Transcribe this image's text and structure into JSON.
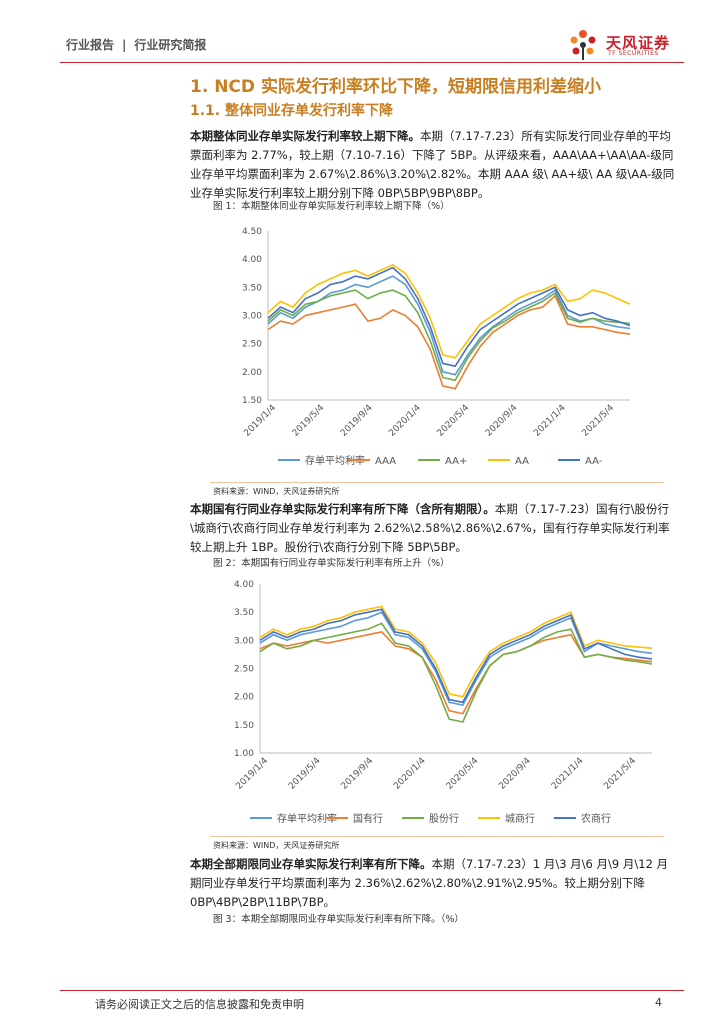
{
  "header": {
    "left_a": "行业报告",
    "sep": "|",
    "left_b": "行业研究简报",
    "logo_cn": "天风证券",
    "logo_en": "TF SECURITIES"
  },
  "section": {
    "h1": "1. NCD 实际发行利率环比下降，短期限信用利差缩小",
    "h2": "1.1. 整体同业存单发行利率下降"
  },
  "para1": {
    "bold": "本期整体同业存单实际发行利率较上期下降。",
    "text": "本期（7.17-7.23）所有实际发行同业存单的平均票面利率为 2.77%，较上期（7.10-7.16）下降了 5BP。从评级来看，AAA\\AA+\\AA\\AA-级同业存单平均票面利率为 2.67%\\2.86%\\3.20%\\2.82%。本期 AAA 级\\ AA+级\\ AA 级\\AA-级同业存单实际发行利率较上期分别下降 0BP\\5BP\\9BP\\8BP。"
  },
  "fig1": {
    "caption": "图 1：本期整体同业存单实际发行利率较上期下降（%）",
    "source": "资料来源：WIND，天风证券研究所"
  },
  "para2": {
    "bold": "本期国有行同业存单实际发行利率有所下降（含所有期限）。",
    "text": "本期（7.17-7.23）国有行\\股份行\\城商行\\农商行同业存单发行利率为 2.62%\\2.58%\\2.86%\\2.67%，国有行存单实际发行利率较上期上升 1BP。股份行\\农商行分别下降 5BP\\5BP。"
  },
  "fig2": {
    "caption": "图 2：本期国有行同业存单实际发行利率有所上升（%）",
    "source": "资料来源：WIND，天风证券研究所"
  },
  "para3": {
    "bold": "本期全部期限同业存单实际发行利率有所下降。",
    "text": "本期（7.17-7.23）1 月\\3 月\\6 月\\9 月\\12 月期同业存单发行平均票面利率为 2.36%\\2.62%\\2.80%\\2.91%\\2.95%。较上期分别下降 0BP\\4BP\\2BP\\11BP\\7BP。"
  },
  "fig3": {
    "caption": "图 3：本期全部期限同业存单实际发行利率有所下降。（%）"
  },
  "footer": {
    "disclaimer": "请务必阅读正文之后的信息披露和免责申明",
    "page": "4"
  },
  "chart_data": [
    {
      "type": "line",
      "ylim": [
        1.5,
        4.5
      ],
      "yticks": [
        "4.50",
        "4.00",
        "3.50",
        "3.00",
        "2.50",
        "2.00",
        "1.50"
      ],
      "x_tick_labels": [
        "2019/1/4",
        "2019/5/4",
        "2019/9/4",
        "2020/1/4",
        "2020/5/4",
        "2020/9/4",
        "2021/1/4",
        "2021/5/4"
      ],
      "n_points": 30,
      "legend_position": "bottom",
      "series": [
        {
          "name": "存单平均利率",
          "color": "#5b9bd5",
          "values": [
            2.85,
            3.05,
            2.95,
            3.15,
            3.25,
            3.4,
            3.45,
            3.55,
            3.5,
            3.6,
            3.7,
            3.55,
            3.2,
            2.7,
            2.0,
            1.95,
            2.3,
            2.6,
            2.8,
            2.95,
            3.1,
            3.2,
            3.3,
            3.45,
            3.0,
            2.9,
            2.95,
            2.85,
            2.8,
            2.77
          ]
        },
        {
          "name": "AAA",
          "color": "#ed7d31",
          "values": [
            2.75,
            2.9,
            2.85,
            3.0,
            3.05,
            3.1,
            3.15,
            3.2,
            2.9,
            2.95,
            3.1,
            3.0,
            2.8,
            2.4,
            1.75,
            1.7,
            2.1,
            2.45,
            2.7,
            2.85,
            3.0,
            3.1,
            3.15,
            3.35,
            2.85,
            2.8,
            2.8,
            2.75,
            2.7,
            2.67
          ]
        },
        {
          "name": "AA+",
          "color": "#70ad47",
          "values": [
            2.9,
            3.1,
            3.0,
            3.2,
            3.25,
            3.35,
            3.4,
            3.45,
            3.3,
            3.4,
            3.45,
            3.35,
            3.05,
            2.55,
            1.9,
            1.85,
            2.25,
            2.55,
            2.78,
            2.9,
            3.05,
            3.15,
            3.25,
            3.4,
            2.95,
            2.88,
            2.95,
            2.9,
            2.88,
            2.86
          ]
        },
        {
          "name": "AA",
          "color": "#ffc000",
          "values": [
            3.05,
            3.25,
            3.15,
            3.4,
            3.55,
            3.65,
            3.75,
            3.8,
            3.7,
            3.8,
            3.9,
            3.75,
            3.4,
            2.95,
            2.3,
            2.25,
            2.55,
            2.85,
            3.0,
            3.15,
            3.3,
            3.4,
            3.45,
            3.55,
            3.25,
            3.3,
            3.45,
            3.4,
            3.3,
            3.2
          ]
        },
        {
          "name": "AA-",
          "color": "#4472c4",
          "values": [
            2.95,
            3.15,
            3.05,
            3.3,
            3.4,
            3.55,
            3.6,
            3.7,
            3.65,
            3.75,
            3.85,
            3.65,
            3.3,
            2.8,
            2.15,
            2.1,
            2.45,
            2.75,
            2.9,
            3.05,
            3.2,
            3.3,
            3.4,
            3.5,
            3.1,
            3.0,
            3.05,
            2.95,
            2.9,
            2.82
          ]
        }
      ]
    },
    {
      "type": "line",
      "ylim": [
        1.0,
        4.0
      ],
      "yticks": [
        "4.00",
        "3.50",
        "3.00",
        "2.50",
        "2.00",
        "1.50",
        "1.00"
      ],
      "x_tick_labels": [
        "2019/1/4",
        "2019/5/4",
        "2019/9/4",
        "2020/1/4",
        "2020/5/4",
        "2020/9/4",
        "2021/1/4",
        "2021/5/4"
      ],
      "n_points": 30,
      "legend_position": "bottom",
      "series": [
        {
          "name": "存单平均利率",
          "color": "#5b9bd5",
          "values": [
            2.95,
            3.1,
            3.0,
            3.1,
            3.15,
            3.2,
            3.25,
            3.35,
            3.4,
            3.5,
            3.1,
            3.05,
            2.85,
            2.45,
            1.9,
            1.85,
            2.3,
            2.7,
            2.85,
            2.95,
            3.05,
            3.2,
            3.3,
            3.4,
            2.8,
            2.95,
            2.9,
            2.85,
            2.8,
            2.77
          ]
        },
        {
          "name": "国有行",
          "color": "#ed7d31",
          "values": [
            2.85,
            2.95,
            2.9,
            2.95,
            3.0,
            2.95,
            3.0,
            3.05,
            3.1,
            3.15,
            2.9,
            2.85,
            2.7,
            2.3,
            1.75,
            1.7,
            2.15,
            2.55,
            2.75,
            2.8,
            2.9,
            3.0,
            3.05,
            3.1,
            2.7,
            2.75,
            2.7,
            2.68,
            2.65,
            2.62
          ]
        },
        {
          "name": "股份行",
          "color": "#70ad47",
          "values": [
            2.8,
            2.95,
            2.85,
            2.9,
            3.0,
            3.05,
            3.1,
            3.15,
            3.2,
            3.3,
            2.95,
            2.9,
            2.7,
            2.2,
            1.6,
            1.55,
            2.1,
            2.55,
            2.75,
            2.8,
            2.9,
            3.05,
            3.15,
            3.2,
            2.7,
            2.75,
            2.7,
            2.65,
            2.62,
            2.58
          ]
        },
        {
          "name": "城商行",
          "color": "#ffc000",
          "values": [
            3.05,
            3.2,
            3.1,
            3.2,
            3.25,
            3.35,
            3.4,
            3.5,
            3.55,
            3.6,
            3.2,
            3.15,
            2.95,
            2.6,
            2.05,
            2.0,
            2.45,
            2.8,
            2.95,
            3.05,
            3.15,
            3.3,
            3.4,
            3.5,
            2.9,
            3.0,
            2.95,
            2.9,
            2.88,
            2.86
          ]
        },
        {
          "name": "农商行",
          "color": "#4472c4",
          "values": [
            3.0,
            3.15,
            3.05,
            3.15,
            3.2,
            3.3,
            3.35,
            3.45,
            3.5,
            3.55,
            3.15,
            3.1,
            2.9,
            2.5,
            1.95,
            1.9,
            2.35,
            2.75,
            2.9,
            3.0,
            3.1,
            3.25,
            3.35,
            3.45,
            2.85,
            2.95,
            2.85,
            2.75,
            2.7,
            2.67
          ]
        }
      ]
    }
  ]
}
